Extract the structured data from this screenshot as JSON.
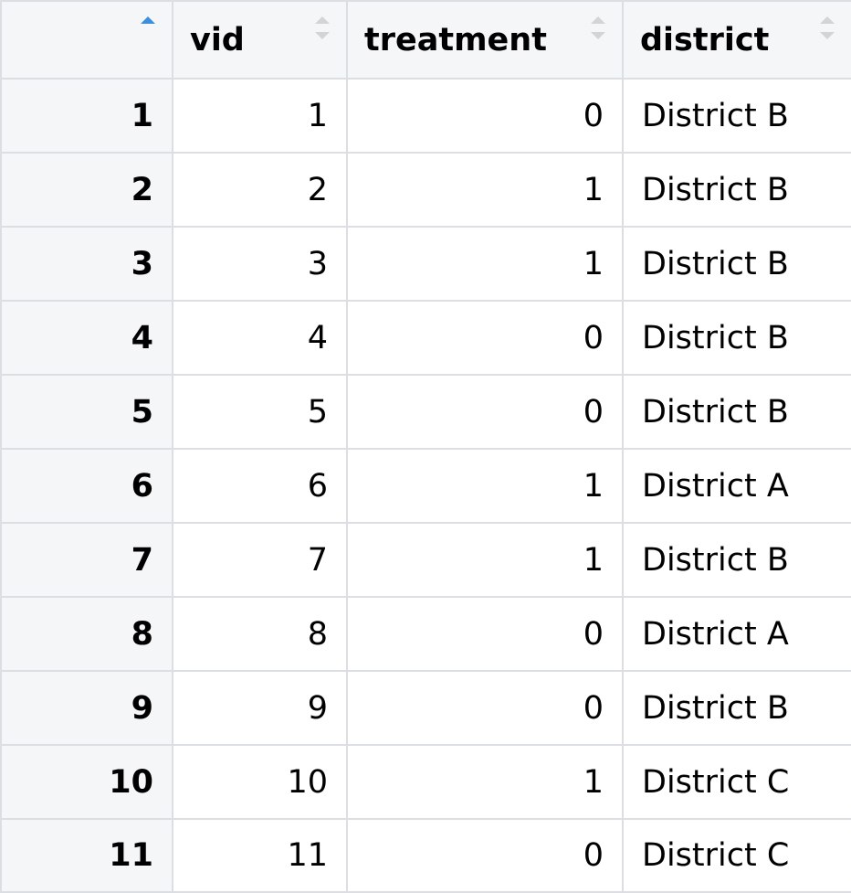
{
  "columns": [
    {
      "label": "",
      "sort": "asc",
      "sort_icon": "sort-ascending-icon"
    },
    {
      "label": "vid",
      "sort": "none",
      "sort_icon": "sort-icon"
    },
    {
      "label": "treatment",
      "sort": "none",
      "sort_icon": "sort-icon"
    },
    {
      "label": "district",
      "sort": "none",
      "sort_icon": "sort-icon"
    }
  ],
  "rows": [
    {
      "row": "1",
      "vid": "1",
      "treatment": "0",
      "district": "District B"
    },
    {
      "row": "2",
      "vid": "2",
      "treatment": "1",
      "district": "District B"
    },
    {
      "row": "3",
      "vid": "3",
      "treatment": "1",
      "district": "District B"
    },
    {
      "row": "4",
      "vid": "4",
      "treatment": "0",
      "district": "District B"
    },
    {
      "row": "5",
      "vid": "5",
      "treatment": "0",
      "district": "District B"
    },
    {
      "row": "6",
      "vid": "6",
      "treatment": "1",
      "district": "District A"
    },
    {
      "row": "7",
      "vid": "7",
      "treatment": "1",
      "district": "District B"
    },
    {
      "row": "8",
      "vid": "8",
      "treatment": "0",
      "district": "District A"
    },
    {
      "row": "9",
      "vid": "9",
      "treatment": "0",
      "district": "District B"
    },
    {
      "row": "10",
      "vid": "10",
      "treatment": "1",
      "district": "District C"
    },
    {
      "row": "11",
      "vid": "11",
      "treatment": "0",
      "district": "District C"
    }
  ],
  "colors": {
    "header_bg": "#f5f6f8",
    "border": "#dbdee2",
    "sort_active": "#3b8fdd",
    "sort_inactive": "#d4d4d4"
  }
}
